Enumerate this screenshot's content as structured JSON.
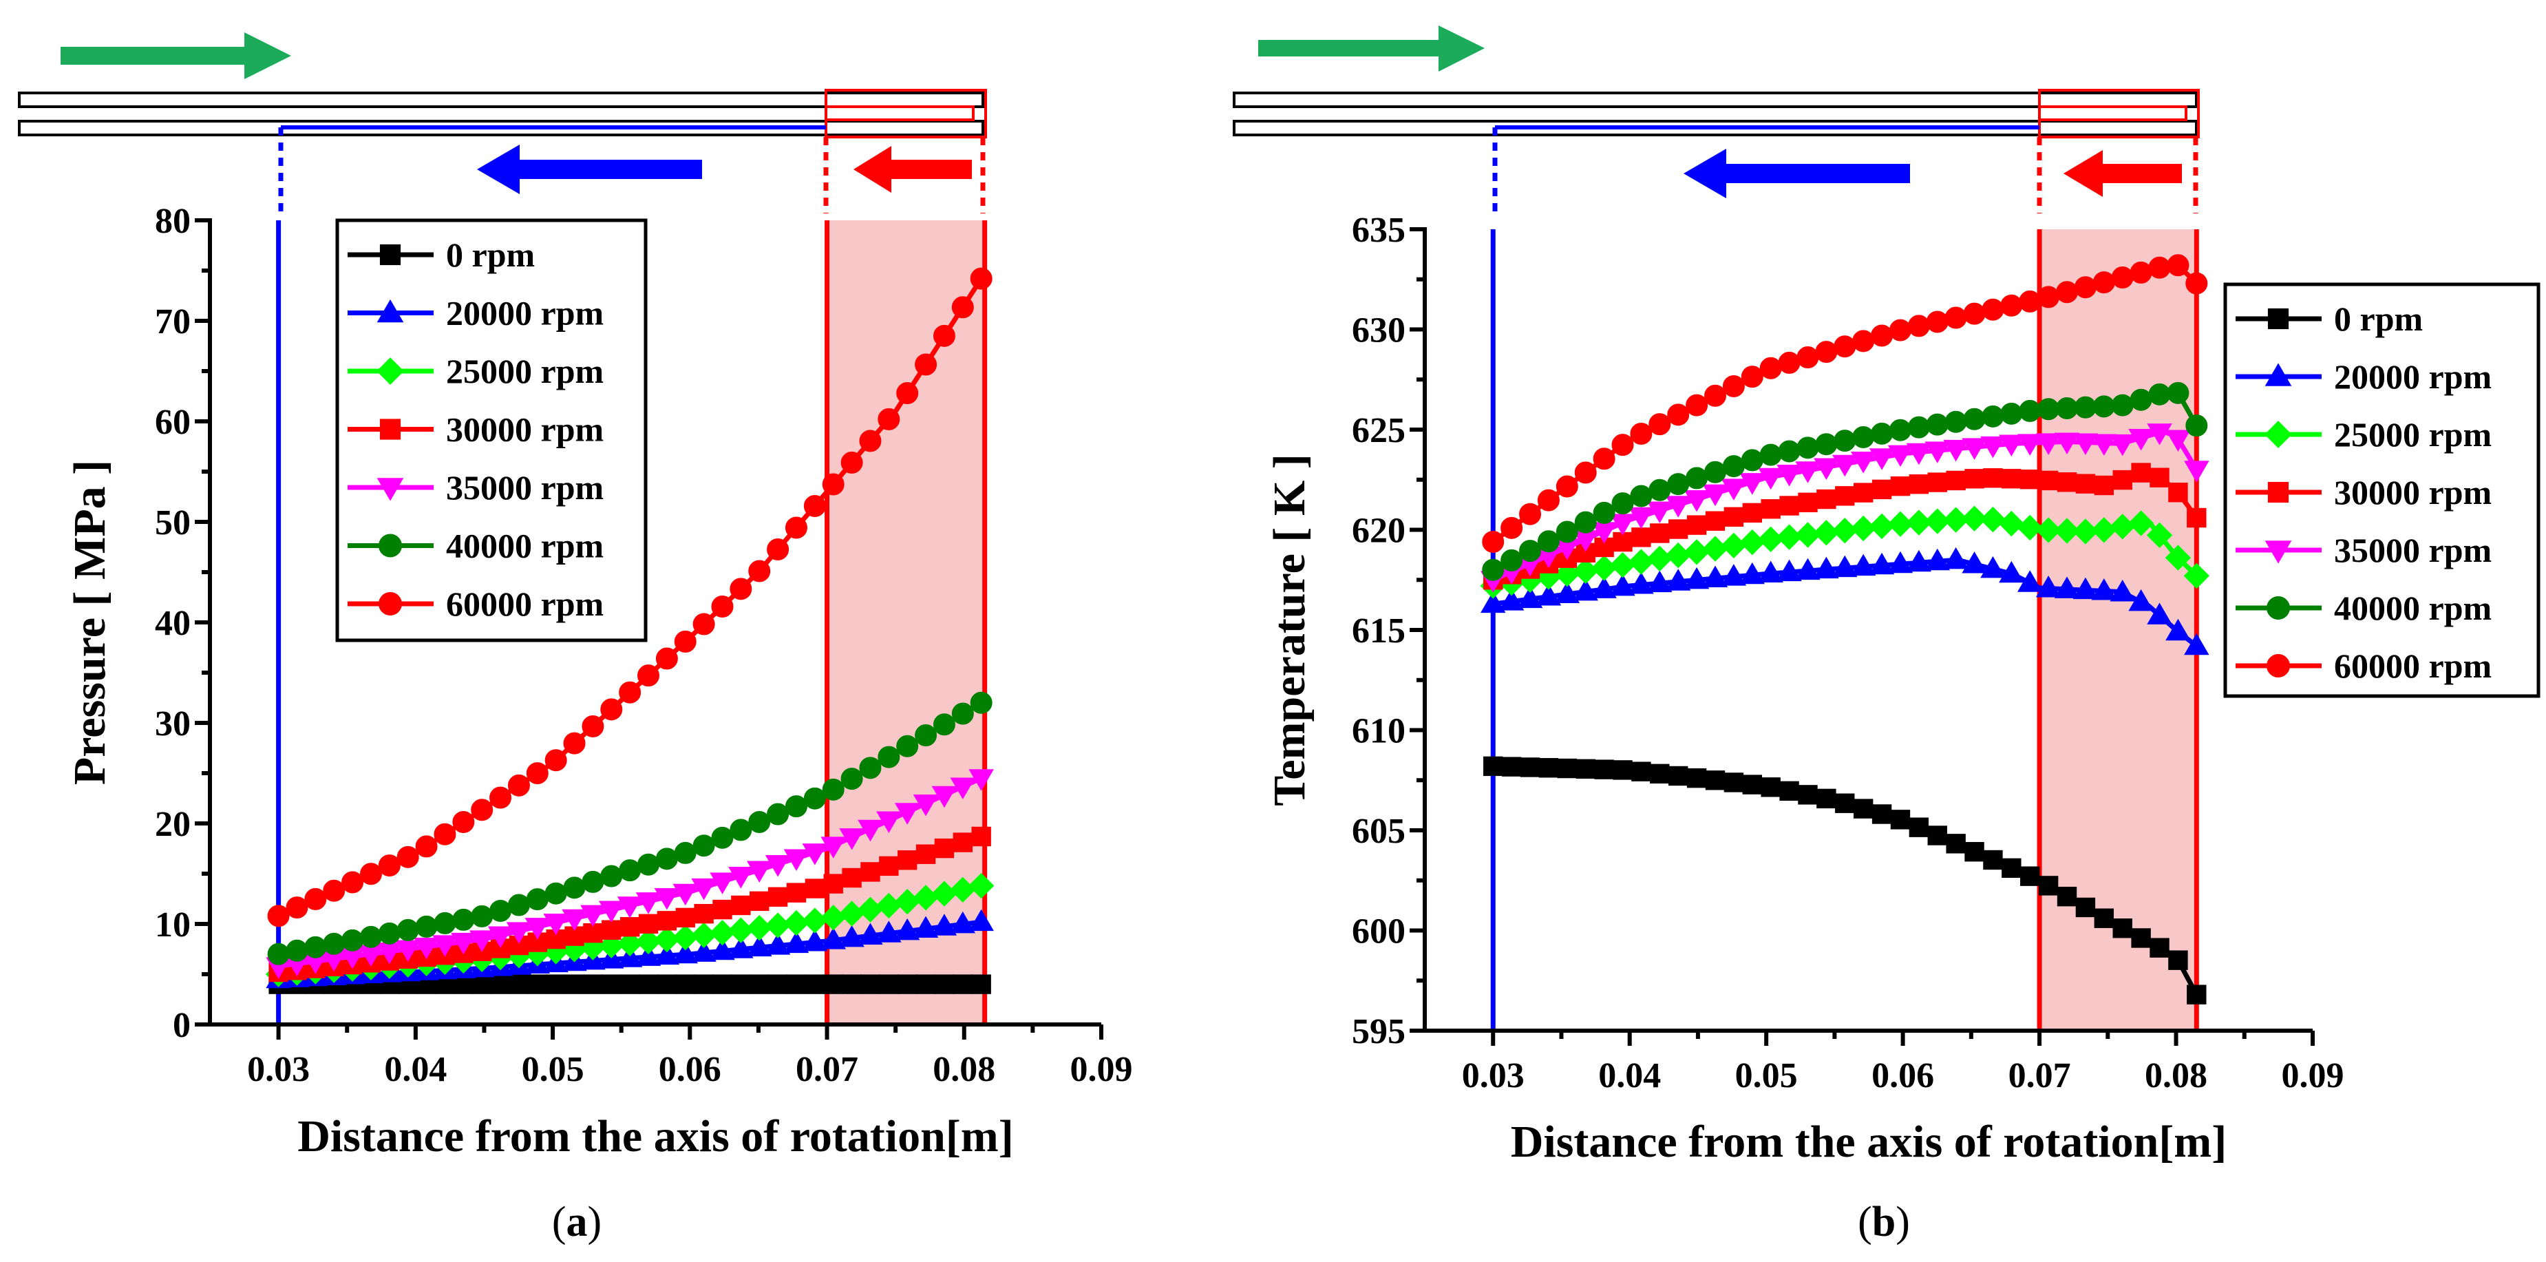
{
  "colors": {
    "black": "#000000",
    "blue": "#0000ff",
    "green": "#00ff00",
    "red": "#ff0000",
    "magenta": "#ff00ff",
    "darkgreen": "#008000",
    "shade": "#f8c8c8",
    "arrow_green": "#1bab5a"
  },
  "panels": [
    {
      "label_open": "(",
      "label_letter": "a",
      "label_close": ")"
    },
    {
      "label_open": "(",
      "label_letter": "b",
      "label_close": ")"
    }
  ],
  "chart_data": [
    {
      "type": "line",
      "title": "",
      "xlabel": "Distance from the axis of rotation[m]",
      "ylabel": "Pressure [ MPa ]",
      "xlim": [
        0.025,
        0.09
      ],
      "ylim": [
        0,
        80
      ],
      "xticks": [
        0.03,
        0.04,
        0.05,
        0.06,
        0.07,
        0.08,
        0.09
      ],
      "xtick_labels": [
        "0.03",
        "0.04",
        "0.05",
        "0.06",
        "0.07",
        "0.08",
        "0.09"
      ],
      "yticks": [
        0,
        10,
        20,
        30,
        40,
        50,
        60,
        70,
        80
      ],
      "ytick_labels": [
        "0",
        "10",
        "20",
        "30",
        "40",
        "50",
        "60",
        "70",
        "80"
      ],
      "shaded_region": [
        0.07,
        0.0815
      ],
      "vertical_lines": [
        {
          "x": 0.03,
          "color": "blue"
        },
        {
          "x": 0.07,
          "color": "red"
        },
        {
          "x": 0.0815,
          "color": "red"
        }
      ],
      "legend_position": "top-left-inside",
      "series": [
        {
          "name": "0 rpm",
          "color": "black",
          "marker": "square",
          "x": [
            0.03,
            0.08125
          ],
          "y": [
            4,
            4
          ]
        },
        {
          "name": "20000 rpm",
          "color": "blue",
          "marker": "triangle-up",
          "x": [
            0.03,
            0.045,
            0.06,
            0.07,
            0.08125
          ],
          "y": [
            4.5,
            5.6,
            7.0,
            8.3,
            10.2
          ]
        },
        {
          "name": "25000 rpm",
          "color": "green",
          "marker": "diamond",
          "x": [
            0.03,
            0.045,
            0.06,
            0.07,
            0.08125
          ],
          "y": [
            5.0,
            6.5,
            8.7,
            10.5,
            13.8
          ]
        },
        {
          "name": "30000 rpm",
          "color": "red",
          "marker": "square",
          "x": [
            0.03,
            0.045,
            0.06,
            0.07,
            0.08125
          ],
          "y": [
            5.2,
            7.3,
            10.7,
            13.8,
            18.7
          ]
        },
        {
          "name": "35000 rpm",
          "color": "magenta",
          "marker": "triangle-down",
          "x": [
            0.03,
            0.045,
            0.06,
            0.07,
            0.08125
          ],
          "y": [
            5.8,
            8.5,
            13.2,
            17.5,
            24.5
          ]
        },
        {
          "name": "40000 rpm",
          "color": "darkgreen",
          "marker": "circle",
          "x": [
            0.03,
            0.045,
            0.06,
            0.07,
            0.08125
          ],
          "y": [
            7.0,
            10.8,
            17.2,
            23.0,
            32.0
          ]
        },
        {
          "name": "60000 rpm",
          "color": "red",
          "marker": "circle",
          "x": [
            0.03,
            0.04,
            0.05,
            0.06,
            0.065,
            0.07,
            0.075,
            0.08125
          ],
          "y": [
            10.8,
            17.0,
            26.0,
            38.5,
            45.0,
            53.0,
            61.0,
            74.2
          ]
        }
      ]
    },
    {
      "type": "line",
      "title": "",
      "xlabel": "Distance from the axis of rotation[m]",
      "ylabel": "Temperature [ K ]",
      "xlim": [
        0.025,
        0.09
      ],
      "ylim": [
        595,
        635
      ],
      "xticks": [
        0.03,
        0.04,
        0.05,
        0.06,
        0.07,
        0.08,
        0.09
      ],
      "xtick_labels": [
        "0.03",
        "0.04",
        "0.05",
        "0.06",
        "0.07",
        "0.08",
        "0.09"
      ],
      "yticks": [
        595,
        600,
        605,
        610,
        615,
        620,
        625,
        630,
        635
      ],
      "ytick_labels": [
        "595",
        "600",
        "605",
        "610",
        "615",
        "620",
        "625",
        "630",
        "635"
      ],
      "shaded_region": [
        0.07,
        0.0815
      ],
      "vertical_lines": [
        {
          "x": 0.03,
          "color": "blue"
        },
        {
          "x": 0.07,
          "color": "red"
        },
        {
          "x": 0.0815,
          "color": "red"
        }
      ],
      "legend_position": "right-outside-top",
      "series": [
        {
          "name": "0 rpm",
          "color": "black",
          "marker": "square",
          "x": [
            0.03,
            0.04,
            0.05,
            0.055,
            0.06,
            0.065,
            0.07,
            0.075,
            0.08,
            0.0815
          ],
          "y": [
            608.2,
            608.0,
            607.2,
            606.5,
            605.5,
            604.0,
            602.5,
            600.5,
            598.7,
            596.8
          ]
        },
        {
          "name": "20000 rpm",
          "color": "blue",
          "marker": "triangle-up",
          "x": [
            0.03,
            0.04,
            0.05,
            0.06,
            0.064,
            0.068,
            0.07,
            0.076,
            0.078,
            0.08,
            0.0815
          ],
          "y": [
            616.3,
            617.2,
            617.8,
            618.3,
            618.5,
            617.8,
            617.1,
            616.9,
            616.2,
            615.0,
            614.2
          ]
        },
        {
          "name": "25000 rpm",
          "color": "green",
          "marker": "diamond",
          "x": [
            0.03,
            0.04,
            0.05,
            0.06,
            0.066,
            0.07,
            0.074,
            0.078,
            0.08,
            0.0815
          ],
          "y": [
            617.2,
            618.3,
            619.5,
            620.3,
            620.6,
            620.0,
            619.9,
            620.4,
            618.7,
            617.7
          ]
        },
        {
          "name": "30000 rpm",
          "color": "red",
          "marker": "square",
          "x": [
            0.03,
            0.04,
            0.05,
            0.06,
            0.066,
            0.07,
            0.075,
            0.078,
            0.08,
            0.0815
          ],
          "y": [
            617.5,
            619.5,
            621.0,
            622.2,
            622.6,
            622.5,
            622.2,
            623.0,
            622.0,
            620.6
          ]
        },
        {
          "name": "35000 rpm",
          "color": "magenta",
          "marker": "triangle-down",
          "x": [
            0.03,
            0.04,
            0.05,
            0.06,
            0.068,
            0.072,
            0.076,
            0.079,
            0.08,
            0.0815
          ],
          "y": [
            617.5,
            620.5,
            622.6,
            623.8,
            624.3,
            624.4,
            624.3,
            624.9,
            624.7,
            623.0
          ]
        },
        {
          "name": "40000 rpm",
          "color": "darkgreen",
          "marker": "circle",
          "x": [
            0.03,
            0.04,
            0.05,
            0.06,
            0.07,
            0.076,
            0.08,
            0.0815
          ],
          "y": [
            618.0,
            621.5,
            623.7,
            625.0,
            626.0,
            626.2,
            627.0,
            625.2
          ]
        },
        {
          "name": "60000 rpm",
          "color": "red",
          "marker": "circle",
          "x": [
            0.03,
            0.04,
            0.05,
            0.06,
            0.07,
            0.075,
            0.08,
            0.0815
          ],
          "y": [
            619.4,
            624.5,
            628.0,
            630.0,
            631.5,
            632.4,
            633.3,
            632.3
          ]
        }
      ]
    }
  ]
}
